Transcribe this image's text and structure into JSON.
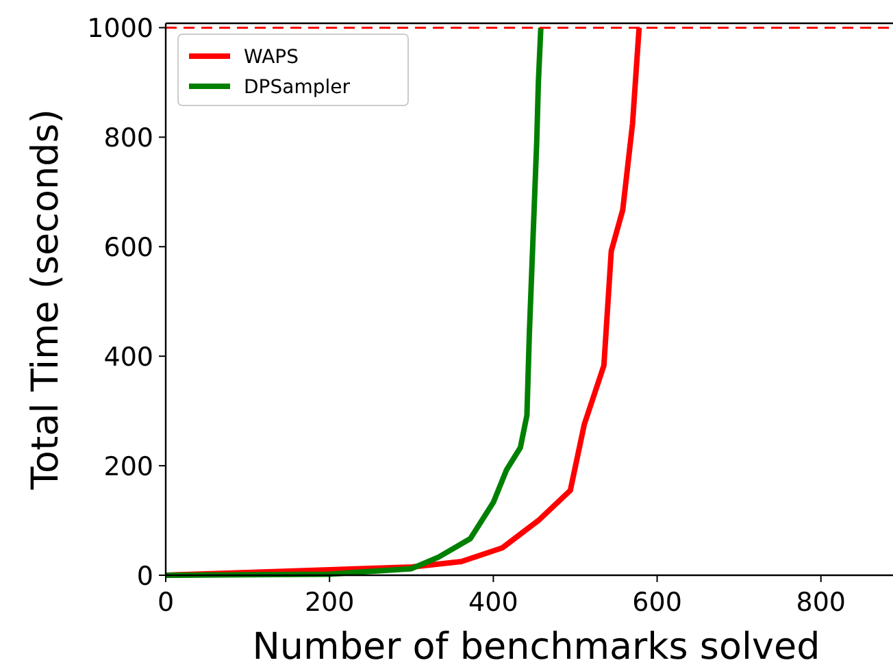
{
  "chart_data": {
    "type": "line",
    "xlabel": "Number of benchmarks solved",
    "ylabel": "Total Time (seconds)",
    "xlim": [
      0,
      888
    ],
    "xticks": [
      0,
      200,
      400,
      600,
      800
    ],
    "ylim": [
      0,
      1008
    ],
    "yticks": [
      0,
      200,
      400,
      600,
      800,
      1000
    ],
    "legend": "top left",
    "line_style": "solid",
    "marker": "none",
    "series": [
      {
        "name": "WAPS",
        "color": "#ff0000",
        "x": [
          0,
          100,
          200,
          300,
          361,
          411,
          455,
          494,
          511,
          535,
          544,
          558,
          570,
          578
        ],
        "values": [
          0,
          5,
          10,
          15,
          25,
          50,
          100,
          155,
          275,
          383,
          592,
          667,
          825,
          1000
        ]
      },
      {
        "name": "DPSampler",
        "color": "#008000",
        "x": [
          0,
          100,
          200,
          300,
          333,
          372,
          400,
          416,
          433,
          441,
          444,
          453,
          455,
          458
        ],
        "values": [
          0,
          1,
          2,
          12,
          33,
          67,
          133,
          192,
          233,
          292,
          442,
          792,
          900,
          1000
        ]
      }
    ],
    "ref_lines": [
      {
        "axis": "y",
        "value": 1000,
        "color": "#ff0000",
        "line_style": "dashed"
      }
    ]
  }
}
